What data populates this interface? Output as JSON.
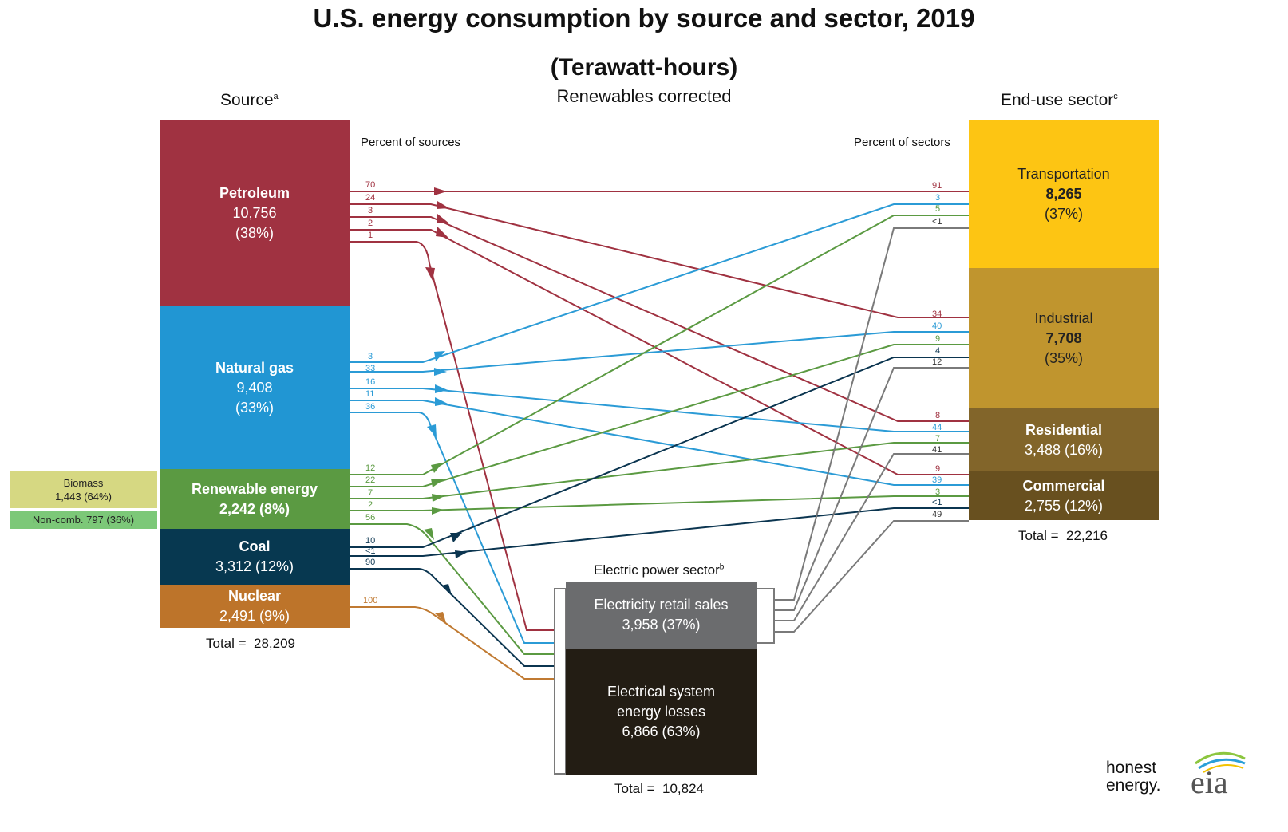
{
  "title": "U.S. energy consumption by source and sector, 2019",
  "subtitle": "(Terawatt-hours)",
  "note": "Renewables corrected",
  "source_header": "Source",
  "source_header_sup": "a",
  "sector_header": "End-use sector",
  "sector_header_sup": "c",
  "electric_header": "Electric power sector",
  "electric_header_sup": "b",
  "percent_of_sources": "Percent of sources",
  "percent_of_sectors": "Percent of sectors",
  "sources": {
    "petroleum": {
      "name": "Petroleum",
      "value": "10,756",
      "pct": "(38%)",
      "color": "#a03241"
    },
    "natural_gas": {
      "name": "Natural gas",
      "value": "9,408",
      "pct": "(33%)",
      "color": "#2196d3"
    },
    "renewable": {
      "name": "Renewable energy",
      "value": "2,242 (8%)",
      "color": "#5b9a42"
    },
    "coal": {
      "name": "Coal",
      "value": "3,312 (12%)",
      "color": "#073850"
    },
    "nuclear": {
      "name": "Nuclear",
      "value": "2,491 (9%)",
      "color": "#bd742a"
    }
  },
  "biomass": {
    "label": "Biomass",
    "value": "1,443 (64%)",
    "color": "#d6d882"
  },
  "noncomb": {
    "label": "Non-comb.  797 (36%)",
    "color": "#7cc878"
  },
  "source_total_label": "Total =",
  "source_total": "28,209",
  "sectors": {
    "transportation": {
      "name": "Transportation",
      "value": "8,265",
      "pct": "(37%)",
      "color": "#fdc513"
    },
    "industrial": {
      "name": "Industrial",
      "value": "7,708",
      "pct": "(35%)",
      "color": "#c0952e"
    },
    "residential": {
      "name": "Residential",
      "value": "3,488  (16%)",
      "color": "#82652a"
    },
    "commercial": {
      "name": "Commercial",
      "value": "2,755 (12%)",
      "color": "#68501f"
    }
  },
  "sector_total_label": "Total =",
  "sector_total": "22,216",
  "electric": {
    "retail": {
      "name": "Electricity retail sales",
      "value": "3,958 (37%)",
      "color": "#6b6c6e"
    },
    "losses": {
      "name1": "Electrical system",
      "name2": "energy losses",
      "value": "6,866 (63%)",
      "color": "#231d14"
    }
  },
  "electric_total_label": "Total =",
  "electric_total": "10,824",
  "flow_labels": {
    "petroleum": [
      "70",
      "24",
      "3",
      "2",
      "1"
    ],
    "natural_gas": [
      "3",
      "33",
      "16",
      "11",
      "36"
    ],
    "renewable": [
      "12",
      "22",
      "7",
      "2",
      "56"
    ],
    "coal": [
      "10",
      "<1",
      "90"
    ],
    "nuclear": [
      "100"
    ],
    "transportation": [
      "91",
      "3",
      "5",
      "<1"
    ],
    "industrial": [
      "34",
      "40",
      "9",
      "4",
      "12"
    ],
    "residential": [
      "8",
      "44",
      "7",
      "41"
    ],
    "commercial": [
      "9",
      "39",
      "3",
      "<1",
      "49"
    ]
  },
  "logo": {
    "line1": "honest",
    "line2": "energy.",
    "eia": "eia"
  }
}
